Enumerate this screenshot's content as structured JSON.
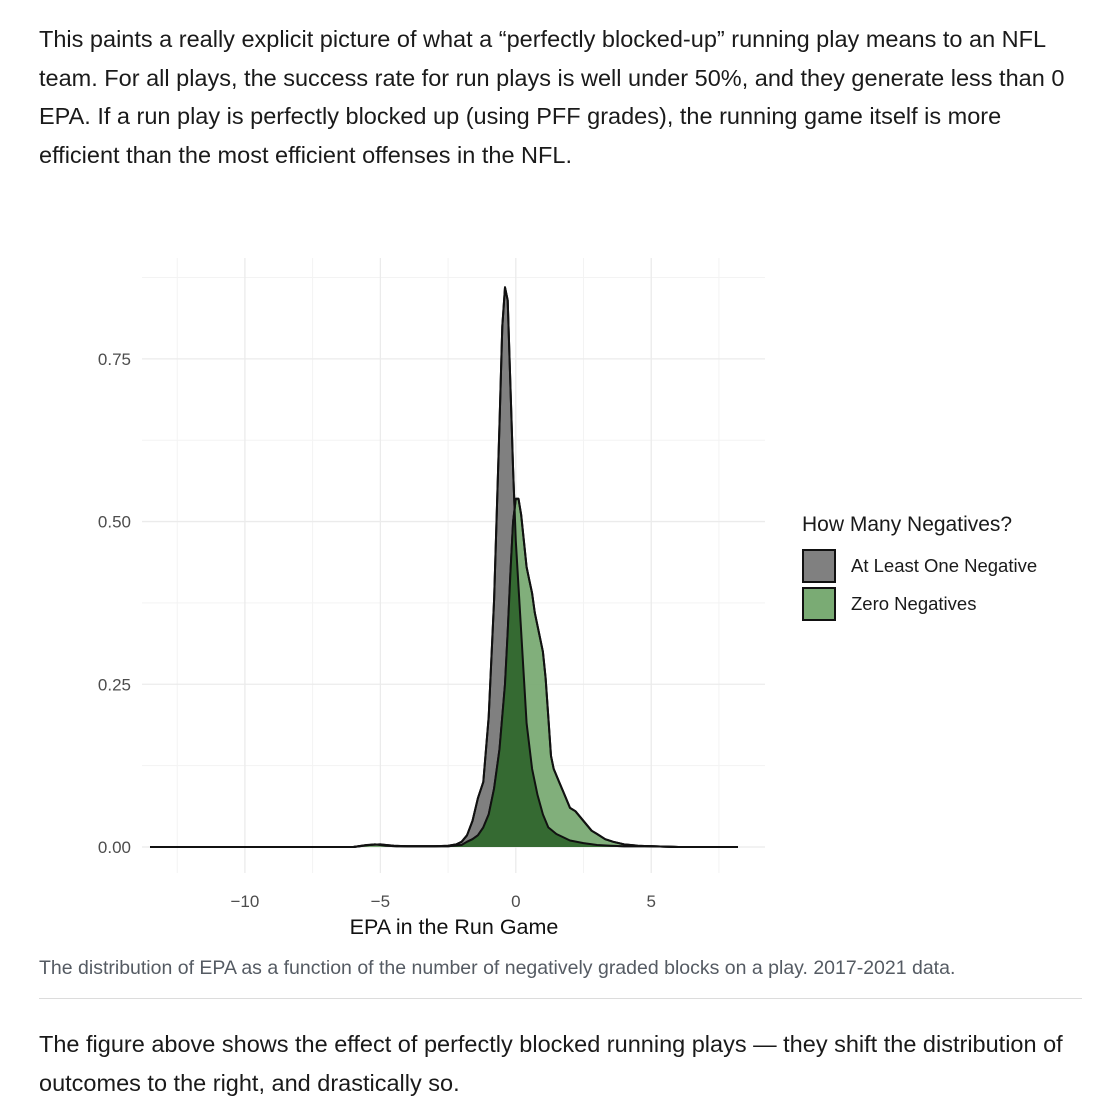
{
  "paragraphs": {
    "intro": "This paints a really explicit picture of what a “perfectly blocked-up” running play means to an NFL team. For all plays, the success rate for run plays is well under 50%, and they generate less than 0 EPA. If a run play is perfectly blocked up (using PFF grades), the running game itself is more efficient than the most efficient offenses in the NFL.",
    "outro": "The figure above shows the effect of perfectly blocked running plays — they shift the distribution of outcomes to the right, and drastically so."
  },
  "caption": "The distribution of EPA as a function of the number of negatively graded blocks on a play. 2017-2021 data.",
  "chart_data": {
    "type": "area",
    "xlabel": "EPA in the Run Game",
    "ylabel": "",
    "xlim": [
      -13.8,
      9.2
    ],
    "ylim": [
      -0.04,
      0.905
    ],
    "x_ticks": [
      -10,
      -5,
      0,
      5
    ],
    "x_tick_labels": [
      "−10",
      "−5",
      "0",
      "5"
    ],
    "y_ticks": [
      0,
      0.25,
      0.5,
      0.75
    ],
    "y_tick_labels": [
      "0.00",
      "0.25",
      "0.50",
      "0.75"
    ],
    "grid": true,
    "legend": {
      "title": "How Many Negatives?",
      "placement": "right"
    },
    "series": [
      {
        "name": "At Least One Negative",
        "color": "#808080",
        "x": [
          -13.5,
          -10,
          -6,
          -5.2,
          -4.8,
          -4.4,
          -4.0,
          -3.5,
          -3.0,
          -2.5,
          -2.2,
          -2.0,
          -1.8,
          -1.6,
          -1.4,
          -1.2,
          -1.0,
          -0.8,
          -0.6,
          -0.5,
          -0.4,
          -0.3,
          -0.2,
          -0.1,
          0.0,
          0.1,
          0.2,
          0.3,
          0.4,
          0.6,
          0.8,
          1.0,
          1.2,
          1.5,
          2.0,
          2.5,
          3.0,
          3.5,
          4.0,
          5.0,
          6.0,
          7.0,
          8.2
        ],
        "y": [
          0,
          0,
          0,
          0.004,
          0.002,
          0.001,
          0.001,
          0.001,
          0.001,
          0.002,
          0.004,
          0.008,
          0.018,
          0.04,
          0.075,
          0.1,
          0.2,
          0.38,
          0.65,
          0.8,
          0.86,
          0.84,
          0.71,
          0.58,
          0.47,
          0.4,
          0.33,
          0.26,
          0.19,
          0.12,
          0.08,
          0.05,
          0.03,
          0.02,
          0.01,
          0.006,
          0.003,
          0.002,
          0.001,
          0.001,
          0,
          0,
          0
        ]
      },
      {
        "name": "Zero Negatives",
        "color": "#7aab74",
        "x": [
          -13.5,
          -10,
          -6,
          -5.5,
          -5.0,
          -4.5,
          -4.0,
          -3.0,
          -2.5,
          -2.0,
          -1.8,
          -1.6,
          -1.4,
          -1.2,
          -1.0,
          -0.8,
          -0.6,
          -0.4,
          -0.3,
          -0.2,
          -0.1,
          0.0,
          0.1,
          0.2,
          0.3,
          0.4,
          0.5,
          0.6,
          0.7,
          0.8,
          0.9,
          1.0,
          1.1,
          1.2,
          1.3,
          1.4,
          1.6,
          1.8,
          2.0,
          2.2,
          2.4,
          2.6,
          2.8,
          3.0,
          3.3,
          3.6,
          4.0,
          4.5,
          5.0,
          6.0,
          7.0,
          8.2
        ],
        "y": [
          0,
          0,
          0,
          0.003,
          0.004,
          0.002,
          0.001,
          0.001,
          0.001,
          0.003,
          0.008,
          0.012,
          0.018,
          0.03,
          0.05,
          0.09,
          0.15,
          0.25,
          0.33,
          0.42,
          0.5,
          0.535,
          0.535,
          0.51,
          0.47,
          0.43,
          0.41,
          0.39,
          0.36,
          0.34,
          0.32,
          0.3,
          0.26,
          0.2,
          0.14,
          0.12,
          0.1,
          0.08,
          0.06,
          0.055,
          0.045,
          0.035,
          0.025,
          0.02,
          0.012,
          0.008,
          0.004,
          0.002,
          0.001,
          0,
          0,
          0
        ]
      }
    ]
  }
}
